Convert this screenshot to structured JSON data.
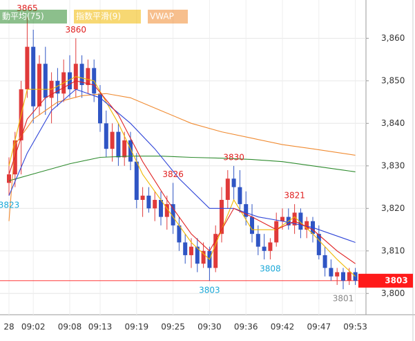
{
  "chart_data": {
    "type": "candlestick",
    "up_color": "#e03a3a",
    "down_color": "#2f55c4",
    "categories": [
      "28",
      null,
      null,
      null,
      "09:02",
      null,
      null,
      null,
      null,
      null,
      "09:08",
      null,
      null,
      null,
      null,
      "09:13",
      null,
      null,
      null,
      null,
      null,
      "09:19",
      null,
      null,
      null,
      null,
      null,
      "09:25",
      null,
      null,
      null,
      null,
      null,
      "09:30",
      null,
      null,
      null,
      null,
      null,
      "09:36",
      null,
      null,
      null,
      null,
      null,
      "09:42",
      null,
      null,
      null,
      null,
      null,
      "09:47",
      null,
      null,
      null,
      null,
      null,
      "09:53"
    ],
    "ohlc": [
      [
        3826,
        3832,
        3823,
        3828
      ],
      [
        3828,
        3838,
        3825,
        3836
      ],
      [
        3836,
        3850,
        3828,
        3848
      ],
      [
        3848,
        3865,
        3846,
        3858
      ],
      [
        3858,
        3862,
        3840,
        3844
      ],
      [
        3844,
        3856,
        3842,
        3854
      ],
      [
        3854,
        3858,
        3842,
        3846
      ],
      [
        3846,
        3852,
        3840,
        3850
      ],
      [
        3850,
        3853,
        3844,
        3847
      ],
      [
        3847,
        3855,
        3845,
        3852
      ],
      [
        3852,
        3856,
        3846,
        3848
      ],
      [
        3848,
        3860,
        3846,
        3854
      ],
      [
        3854,
        3856,
        3846,
        3849
      ],
      [
        3849,
        3855,
        3847,
        3853
      ],
      [
        3853,
        3855,
        3845,
        3847
      ],
      [
        3847,
        3849,
        3838,
        3840
      ],
      [
        3840,
        3843,
        3832,
        3834
      ],
      [
        3834,
        3840,
        3831,
        3838
      ],
      [
        3838,
        3840,
        3830,
        3832
      ],
      [
        3832,
        3838,
        3830,
        3836
      ],
      [
        3836,
        3838,
        3829,
        3831
      ],
      [
        3831,
        3833,
        3820,
        3822
      ],
      [
        3822,
        3825,
        3818,
        3823
      ],
      [
        3823,
        3825,
        3819,
        3820
      ],
      [
        3820,
        3824,
        3817,
        3822
      ],
      [
        3822,
        3824,
        3816,
        3818
      ],
      [
        3818,
        3823,
        3815,
        3821
      ],
      [
        3821,
        3826,
        3814,
        3816
      ],
      [
        3816,
        3818,
        3810,
        3812
      ],
      [
        3812,
        3814,
        3807,
        3809
      ],
      [
        3809,
        3813,
        3806,
        3811
      ],
      [
        3811,
        3813,
        3805,
        3807
      ],
      [
        3807,
        3812,
        3806,
        3810
      ],
      [
        3810,
        3811,
        3803,
        3806
      ],
      [
        3806,
        3816,
        3805,
        3814
      ],
      [
        3814,
        3825,
        3812,
        3822
      ],
      [
        3822,
        3829,
        3820,
        3827
      ],
      [
        3827,
        3830,
        3822,
        3825
      ],
      [
        3825,
        3829,
        3819,
        3821
      ],
      [
        3821,
        3824,
        3816,
        3818
      ],
      [
        3818,
        3821,
        3812,
        3814
      ],
      [
        3814,
        3816,
        3809,
        3811
      ],
      [
        3811,
        3814,
        3808,
        3810
      ],
      [
        3810,
        3813,
        3808,
        3812
      ],
      [
        3812,
        3819,
        3811,
        3817
      ],
      [
        3817,
        3820,
        3815,
        3818
      ],
      [
        3818,
        3820,
        3815,
        3816
      ],
      [
        3816,
        3821,
        3814,
        3819
      ],
      [
        3819,
        3820,
        3813,
        3815
      ],
      [
        3815,
        3818,
        3813,
        3817
      ],
      [
        3817,
        3818,
        3812,
        3814
      ],
      [
        3814,
        3816,
        3808,
        3809
      ],
      [
        3809,
        3811,
        3804,
        3806
      ],
      [
        3806,
        3808,
        3803,
        3804
      ],
      [
        3804,
        3806,
        3802,
        3805
      ],
      [
        3805,
        3806,
        3801,
        3803
      ],
      [
        3803,
        3806,
        3802,
        3805
      ],
      [
        3805,
        3806,
        3802,
        3803
      ]
    ],
    "series": [
      {
        "name": "動平均(75)",
        "color": "#2e8b2e",
        "x": [
          0,
          5,
          10,
          15,
          20,
          25,
          30,
          35,
          40,
          45,
          50,
          55,
          57
        ],
        "values": [
          3826.5,
          3828.5,
          3830.5,
          3832,
          3832.3,
          3832.3,
          3832,
          3831.8,
          3831.5,
          3831,
          3830,
          3829,
          3828.6
        ]
      },
      {
        "name": "指数平滑(9)",
        "color": "#f0b800",
        "x": [
          0,
          3,
          7,
          11,
          14,
          18,
          22,
          26,
          30,
          33,
          37,
          40,
          44,
          47,
          50,
          54,
          57
        ],
        "values": [
          3830,
          3848,
          3848,
          3851,
          3850,
          3840,
          3828,
          3820,
          3812,
          3808,
          3822,
          3815,
          3815,
          3818,
          3814,
          3808,
          3804
        ]
      },
      {
        "name": "VWAP",
        "color": "#f08a30",
        "x": [
          0,
          1,
          4,
          8,
          12,
          16,
          20,
          25,
          30,
          35,
          40,
          45,
          50,
          57
        ],
        "values": [
          3817,
          3835,
          3841,
          3845,
          3846.5,
          3847,
          3846,
          3843,
          3840,
          3838,
          3836.5,
          3835,
          3834,
          3832.5
        ]
      },
      {
        "color": "#2f45d8",
        "x": [
          0,
          3,
          7,
          11,
          15,
          20,
          24,
          28,
          33,
          37,
          41,
          45,
          50,
          55,
          57
        ],
        "values": [
          3823,
          3833,
          3843,
          3848,
          3846,
          3840,
          3834,
          3827,
          3820,
          3820,
          3818,
          3817,
          3815.5,
          3813,
          3812
        ]
      },
      {
        "color": "#e02020",
        "x": [
          0,
          3,
          6,
          11,
          14,
          18,
          22,
          26,
          30,
          33,
          37,
          40,
          44,
          47,
          50,
          54,
          57
        ],
        "values": [
          3828,
          3841,
          3846,
          3850,
          3849,
          3842,
          3831,
          3822,
          3814,
          3810,
          3820,
          3818,
          3815,
          3817,
          3815,
          3810,
          3807
        ]
      }
    ],
    "annotations": [
      {
        "x": 3,
        "value": 3865,
        "color": "#e02020",
        "position": "above"
      },
      {
        "x": 11,
        "value": 3860,
        "color": "#e02020",
        "position": "above"
      },
      {
        "x": 27,
        "value": 3826,
        "color": "#e02020",
        "position": "above"
      },
      {
        "x": 37,
        "value": 3830,
        "color": "#e02020",
        "position": "above"
      },
      {
        "x": 47,
        "value": 3821,
        "color": "#e02020",
        "position": "above"
      },
      {
        "x": 0,
        "value": 3823,
        "color": "#1aa8d8",
        "position": "below"
      },
      {
        "x": 33,
        "value": 3803,
        "color": "#1aa8d8",
        "position": "below"
      },
      {
        "x": 43,
        "value": 3808,
        "color": "#1aa8d8",
        "position": "below"
      },
      {
        "x": 55,
        "value": 3801,
        "color": "#888888",
        "position": "below"
      }
    ],
    "last_price": 3803,
    "last_price_color": "#ff1a1a",
    "ylim": [
      3795,
      3869
    ],
    "yticks": [
      {
        "value": 3800,
        "label": "3,800"
      },
      {
        "value": 3810,
        "label": "3,810"
      },
      {
        "value": 3820,
        "label": "3,820"
      },
      {
        "value": 3830,
        "label": "3,830"
      },
      {
        "value": 3840,
        "label": "3,840"
      },
      {
        "value": 3850,
        "label": "3,850"
      },
      {
        "value": 3860,
        "label": "3,860"
      }
    ],
    "grid": true
  }
}
